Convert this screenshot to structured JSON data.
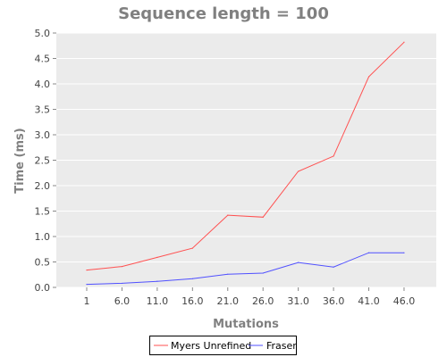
{
  "chart_data": {
    "type": "line",
    "title": "Sequence length = 100",
    "xlabel": "Mutations",
    "ylabel": "Time (ms)",
    "categories": [
      "1",
      "6.0",
      "11.0",
      "16.0",
      "21.0",
      "26.0",
      "31.0",
      "36.0",
      "41.0",
      "46.0"
    ],
    "y_ticks": [
      "0.0",
      "0.5",
      "1.0",
      "1.5",
      "2.0",
      "2.5",
      "3.0",
      "3.5",
      "4.0",
      "4.5",
      "5.0"
    ],
    "ylim": [
      0,
      5.0
    ],
    "grid": true,
    "legend_placement": "bottom-center",
    "plot_background": "#ebebeb",
    "grid_color": "#ffffff",
    "series": [
      {
        "name": "Myers Unrefined",
        "color": "#ff5050",
        "values": [
          0.34,
          0.41,
          0.59,
          0.77,
          1.42,
          1.38,
          2.28,
          2.58,
          4.14,
          4.82
        ]
      },
      {
        "name": "Fraser",
        "color": "#5050ff",
        "values": [
          0.06,
          0.08,
          0.12,
          0.17,
          0.26,
          0.28,
          0.49,
          0.4,
          0.68,
          0.68
        ]
      }
    ]
  }
}
